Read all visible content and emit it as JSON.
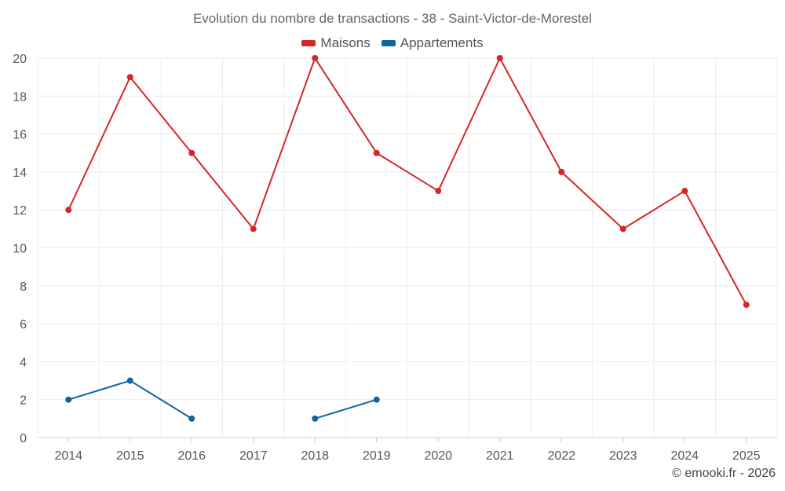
{
  "chart_data": {
    "type": "line",
    "title": "Evolution du nombre de transactions - 38 - Saint-Victor-de-Morestel",
    "categories": [
      "2014",
      "2015",
      "2016",
      "2017",
      "2018",
      "2019",
      "2020",
      "2021",
      "2022",
      "2023",
      "2024",
      "2025"
    ],
    "series": [
      {
        "name": "Maisons",
        "color": "#d62728",
        "values": [
          12,
          19,
          15,
          11,
          20,
          15,
          13,
          20,
          14,
          11,
          13,
          7
        ]
      },
      {
        "name": "Appartements",
        "color": "#0f6699",
        "values": [
          2,
          3,
          1,
          null,
          1,
          2,
          null,
          null,
          null,
          null,
          null,
          null
        ]
      }
    ],
    "ylim": [
      0,
      20
    ],
    "yticks": [
      0,
      2,
      4,
      6,
      8,
      10,
      12,
      14,
      16,
      18,
      20
    ],
    "grid": true,
    "legend_position": "top-center",
    "xlabel": "",
    "ylabel": ""
  },
  "credit": "© emooki.fr - 2026"
}
